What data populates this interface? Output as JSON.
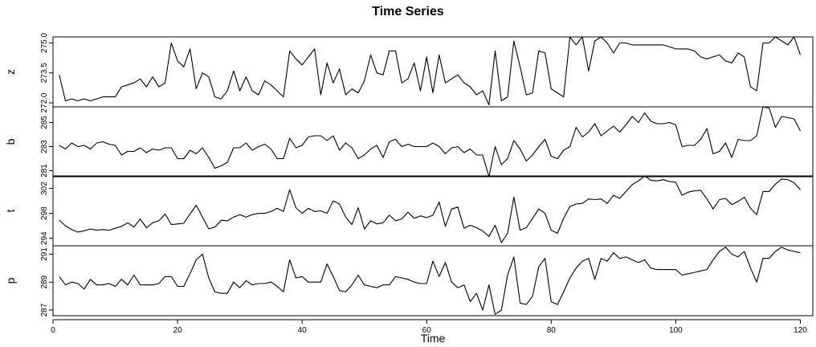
{
  "chart_data": {
    "type": "line",
    "title": "Time Series",
    "xlabel": "Time",
    "xlim": [
      0,
      122
    ],
    "xticks": [
      0,
      20,
      40,
      60,
      80,
      100,
      120
    ],
    "grid": false,
    "panels": [
      {
        "name": "z",
        "ylim": [
          271.8,
          275.3
        ],
        "yticks": [
          272.0,
          273.5,
          275.0
        ],
        "ytick_labels": [
          "272.0",
          "273.5",
          "275.0"
        ],
        "values": [
          273.4,
          272.1,
          272.2,
          272.1,
          272.2,
          272.1,
          272.2,
          272.3,
          272.3,
          272.3,
          272.8,
          272.9,
          273.0,
          273.2,
          272.8,
          273.3,
          272.8,
          273.0,
          275.0,
          274.1,
          273.8,
          274.7,
          272.7,
          273.5,
          273.3,
          272.3,
          272.2,
          272.6,
          273.6,
          272.6,
          273.3,
          272.6,
          272.4,
          273.1,
          272.9,
          272.6,
          272.3,
          274.6,
          274.2,
          273.9,
          274.3,
          274.7,
          272.4,
          274.0,
          273.0,
          273.7,
          272.4,
          272.7,
          272.5,
          273.1,
          274.4,
          273.5,
          273.4,
          274.6,
          274.6,
          273.0,
          273.2,
          274.0,
          272.6,
          274.3,
          272.5,
          274.4,
          273.0,
          273.2,
          273.4,
          273.0,
          272.8,
          272.4,
          272.6,
          271.9,
          274.6,
          272.1,
          272.3,
          275.1,
          273.8,
          272.4,
          272.5,
          274.6,
          274.5,
          272.7,
          272.5,
          272.3,
          275.3,
          274.9,
          275.3,
          273.6,
          275.1,
          275.3,
          275.0,
          274.5,
          275.0,
          275.0,
          274.9,
          274.9,
          274.9,
          274.9,
          274.9,
          274.9,
          274.8,
          274.7,
          274.7,
          274.7,
          274.6,
          274.3,
          274.2,
          274.3,
          274.4,
          274.1,
          274.0,
          274.5,
          274.3,
          272.8,
          272.6,
          275.0,
          275.0,
          275.3,
          275.1,
          274.9,
          275.3,
          274.4
        ]
      },
      {
        "name": "b",
        "ylim": [
          280.5,
          286.3
        ],
        "yticks": [
          281,
          283,
          285
        ],
        "ytick_labels": [
          "281",
          "283",
          "285"
        ],
        "values": [
          283.1,
          282.8,
          283.3,
          283.0,
          283.1,
          282.8,
          283.3,
          283.4,
          283.2,
          283.1,
          282.3,
          282.6,
          282.6,
          282.9,
          282.5,
          282.8,
          282.7,
          282.9,
          282.9,
          282.0,
          282.0,
          282.7,
          282.4,
          282.9,
          282.1,
          281.2,
          281.4,
          281.7,
          282.9,
          282.9,
          283.3,
          282.7,
          283.0,
          283.2,
          282.8,
          282.0,
          282.0,
          283.7,
          282.9,
          283.1,
          283.8,
          283.9,
          283.9,
          283.5,
          283.9,
          282.7,
          283.3,
          282.9,
          282.0,
          282.3,
          282.8,
          283.1,
          282.1,
          283.4,
          283.6,
          283.0,
          283.2,
          283.0,
          283.0,
          283.0,
          283.3,
          283.0,
          282.4,
          282.9,
          283.0,
          282.5,
          282.8,
          282.3,
          282.3,
          280.5,
          283.0,
          281.5,
          282.0,
          283.5,
          282.8,
          281.8,
          282.3,
          283.0,
          283.6,
          282.2,
          282.0,
          282.7,
          283.0,
          284.6,
          283.8,
          284.2,
          284.9,
          283.9,
          284.3,
          284.7,
          284.2,
          284.8,
          285.5,
          285.0,
          285.8,
          285.1,
          284.9,
          284.9,
          285.0,
          284.8,
          283.0,
          283.1,
          283.1,
          283.6,
          284.5,
          282.4,
          282.6,
          283.3,
          282.1,
          283.6,
          283.5,
          283.5,
          283.9,
          286.3,
          286.2,
          284.6,
          285.5,
          285.4,
          285.3,
          284.3
        ]
      },
      {
        "name": "t",
        "ylim": [
          292.8,
          304.0
        ],
        "yticks": [
          294,
          298,
          302
        ],
        "ytick_labels": [
          "294",
          "298",
          "302"
        ],
        "values": [
          296.9,
          296.0,
          295.4,
          295.0,
          295.2,
          295.5,
          295.3,
          295.4,
          295.3,
          295.6,
          295.9,
          296.5,
          295.8,
          297.1,
          295.7,
          296.5,
          296.8,
          297.9,
          296.2,
          296.3,
          296.4,
          297.9,
          299.3,
          297.4,
          295.5,
          295.8,
          296.9,
          296.8,
          297.4,
          297.8,
          297.4,
          297.8,
          298.0,
          298.0,
          298.3,
          298.8,
          298.3,
          301.8,
          298.9,
          298.0,
          298.8,
          298.3,
          298.4,
          298.0,
          300.0,
          299.5,
          297.4,
          296.2,
          298.9,
          295.5,
          296.8,
          296.3,
          296.5,
          297.7,
          296.8,
          297.1,
          298.2,
          297.2,
          297.6,
          297.3,
          297.7,
          299.8,
          295.9,
          298.7,
          299.0,
          295.6,
          296.1,
          295.7,
          295.2,
          294.3,
          296.1,
          293.3,
          294.8,
          300.6,
          295.3,
          295.7,
          297.2,
          298.7,
          298.0,
          295.3,
          294.8,
          297.2,
          299.1,
          299.5,
          299.6,
          300.3,
          300.2,
          300.3,
          299.6,
          300.9,
          300.4,
          301.5,
          302.6,
          303.2,
          304.0,
          303.3,
          303.2,
          303.4,
          303.1,
          303.0,
          300.9,
          301.4,
          301.6,
          301.7,
          300.3,
          298.7,
          300.2,
          300.4,
          299.4,
          299.9,
          300.6,
          298.8,
          297.8,
          301.5,
          301.5,
          302.7,
          303.5,
          303.4,
          302.9,
          301.8
        ]
      },
      {
        "name": "p",
        "ylim": [
          286.6,
          291.6
        ],
        "yticks": [
          287,
          289,
          291
        ],
        "ytick_labels": [
          "287",
          "289",
          "291"
        ],
        "values": [
          289.4,
          288.8,
          289.0,
          288.9,
          288.5,
          289.2,
          288.8,
          288.8,
          288.9,
          288.7,
          289.2,
          288.8,
          289.5,
          288.8,
          288.8,
          288.8,
          288.9,
          289.4,
          289.4,
          288.7,
          288.7,
          289.6,
          290.6,
          291.0,
          289.3,
          288.3,
          288.2,
          288.2,
          289.0,
          288.6,
          289.1,
          288.8,
          288.9,
          288.9,
          289.0,
          288.7,
          288.3,
          290.6,
          289.3,
          289.4,
          289.0,
          289.0,
          289.0,
          290.3,
          289.4,
          288.4,
          288.3,
          288.8,
          289.5,
          288.8,
          288.7,
          288.6,
          288.8,
          288.8,
          289.4,
          289.3,
          289.2,
          289.0,
          288.9,
          288.9,
          290.5,
          289.4,
          290.4,
          289.0,
          288.6,
          288.8,
          287.6,
          288.2,
          287.0,
          288.8,
          286.7,
          287.0,
          289.5,
          290.8,
          287.5,
          287.4,
          288.0,
          290.1,
          290.7,
          287.6,
          287.4,
          288.3,
          289.3,
          290.0,
          290.5,
          290.7,
          289.2,
          290.7,
          290.5,
          291.1,
          290.7,
          290.8,
          290.6,
          290.4,
          290.6,
          290.0,
          289.9,
          289.9,
          289.9,
          289.9,
          289.5,
          289.6,
          289.7,
          289.8,
          289.9,
          290.6,
          291.2,
          291.5,
          291.0,
          290.8,
          291.2,
          290.0,
          289.0,
          290.7,
          290.7,
          291.2,
          291.5,
          291.3,
          291.2,
          291.1
        ]
      }
    ]
  }
}
